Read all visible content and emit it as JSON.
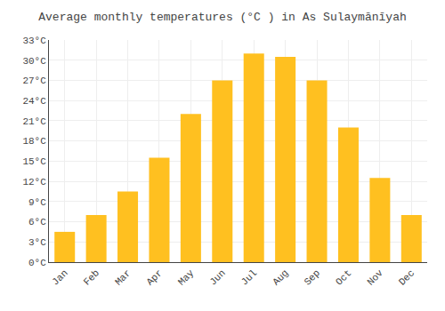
{
  "chart_data": {
    "type": "bar",
    "title": "Average monthly temperatures (°C ) in As Sulaymānīyah",
    "categories": [
      "Jan",
      "Feb",
      "Mar",
      "Apr",
      "May",
      "Jun",
      "Jul",
      "Aug",
      "Sep",
      "Oct",
      "Nov",
      "Dec"
    ],
    "values": [
      4.5,
      7.0,
      10.5,
      15.5,
      22.0,
      27.0,
      31.0,
      30.5,
      27.0,
      20.0,
      12.5,
      7.0
    ],
    "color": "#FFC020",
    "ylim": [
      0,
      33
    ],
    "yticks": [
      {
        "value": 0,
        "label": "0°C"
      },
      {
        "value": 3,
        "label": "3°C"
      },
      {
        "value": 6,
        "label": "6°C"
      },
      {
        "value": 9,
        "label": "9°C"
      },
      {
        "value": 12,
        "label": "12°C"
      },
      {
        "value": 15,
        "label": "15°C"
      },
      {
        "value": 18,
        "label": "18°C"
      },
      {
        "value": 21,
        "label": "21°C"
      },
      {
        "value": 24,
        "label": "24°C"
      },
      {
        "value": 27,
        "label": "27°C"
      },
      {
        "value": 30,
        "label": "30°C"
      },
      {
        "value": 33,
        "label": "33°C"
      }
    ],
    "grid": true
  }
}
